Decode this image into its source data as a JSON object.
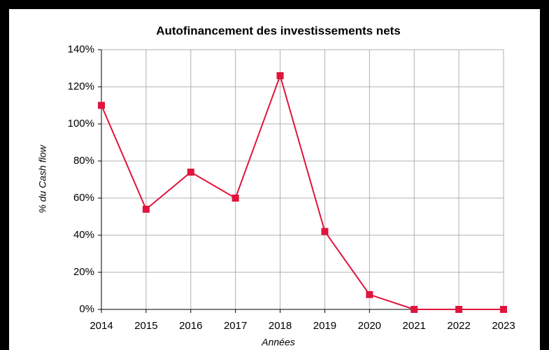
{
  "chart_data": {
    "type": "line",
    "title": "Autofinancement des investissements nets",
    "x_label": "Années",
    "y_label": "% du Cash flow",
    "categories": [
      "2014",
      "2015",
      "2016",
      "2017",
      "2018",
      "2019",
      "2020",
      "2021",
      "2022",
      "2023"
    ],
    "series": [
      {
        "color": "#e0143c",
        "values": [
          110,
          54,
          74,
          60,
          126,
          42,
          8,
          0,
          0,
          0
        ]
      }
    ],
    "ylim": [
      0,
      140
    ],
    "yticks": [
      {
        "value": 0,
        "label": "0%"
      },
      {
        "value": 20,
        "label": "20%"
      },
      {
        "value": 40,
        "label": "40%"
      },
      {
        "value": 60,
        "label": "60%"
      },
      {
        "value": 80,
        "label": "80%"
      },
      {
        "value": 100,
        "label": "100%"
      },
      {
        "value": 120,
        "label": "120%"
      },
      {
        "value": 140,
        "label": "140%"
      }
    ],
    "grid": true
  }
}
